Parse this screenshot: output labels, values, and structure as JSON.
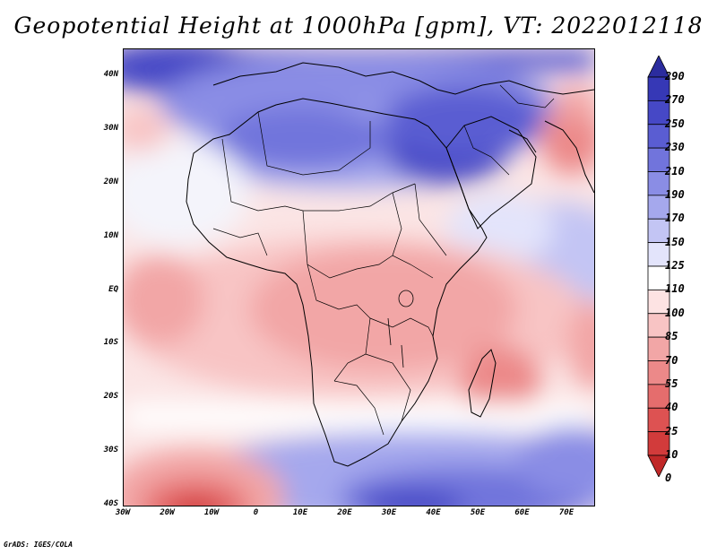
{
  "title": "Geopotential Height at 1000hPa [gpm], VT: 2022012118",
  "credit": "GrADS: IGES/COLA",
  "lat_ticks": [
    "40N",
    "30N",
    "20N",
    "10N",
    "EQ",
    "10S",
    "20S",
    "30S",
    "40S"
  ],
  "lon_ticks": [
    "30W",
    "20W",
    "10W",
    "0",
    "10E",
    "20E",
    "30E",
    "40E",
    "50E",
    "60E",
    "70E"
  ],
  "colorbar": {
    "labels": [
      "290",
      "270",
      "250",
      "230",
      "210",
      "190",
      "170",
      "150",
      "125",
      "110",
      "100",
      "85",
      "70",
      "55",
      "40",
      "25",
      "10",
      "0"
    ],
    "colors": [
      "#2b2c9e",
      "#3638b6",
      "#4648c6",
      "#5a5dd2",
      "#7174dc",
      "#8a8de5",
      "#a5a8ed",
      "#c3c5f4",
      "#e3e4fb",
      "#ffffff",
      "#fde3e3",
      "#f8c4c4",
      "#f2a6a6",
      "#ec8989",
      "#e56d6d",
      "#dd5252",
      "#d23b3b",
      "#c02828"
    ]
  }
}
